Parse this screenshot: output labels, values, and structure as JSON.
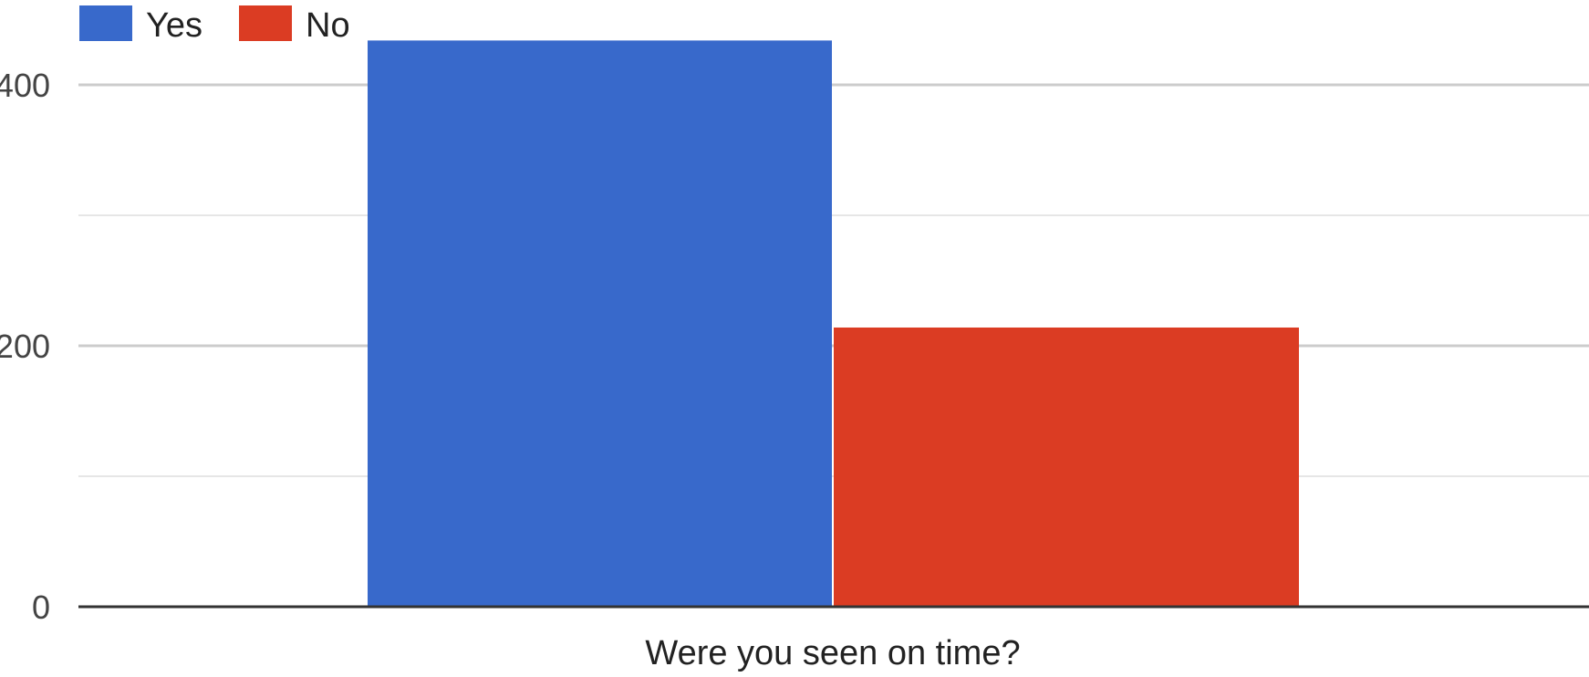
{
  "chart_data": {
    "type": "bar",
    "categories": [
      "Were you seen on time?"
    ],
    "series": [
      {
        "name": "Yes",
        "values": [
          434
        ],
        "color": "#3869cb"
      },
      {
        "name": "No",
        "values": [
          214
        ],
        "color": "#db3c23"
      }
    ],
    "title": "",
    "xlabel": "Were you seen on time?",
    "ylabel": "",
    "ylim": [
      0,
      400
    ],
    "yticks": [
      "0",
      "200",
      "400"
    ],
    "grid": true,
    "legend_position": "top-left"
  }
}
